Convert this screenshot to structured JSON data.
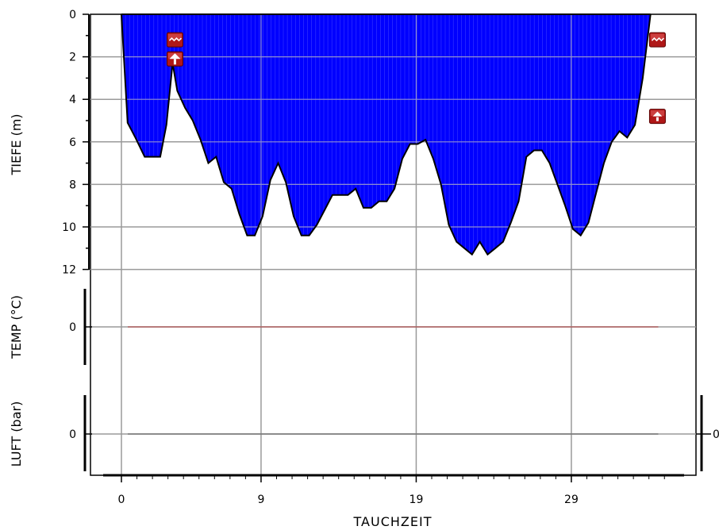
{
  "chart_data": {
    "type": "area",
    "xlabel": "TAUCHZEIT",
    "x_ticks": [
      0,
      9,
      19,
      29
    ],
    "depth_panel": {
      "ylabel": "TIEFE (m)",
      "ylim": [
        0,
        12
      ],
      "y_ticks": [
        0,
        2,
        4,
        6,
        8,
        10,
        12
      ],
      "inverted": true,
      "series": [
        {
          "x": [
            0,
            0.4,
            0.9,
            1.5,
            2.5,
            2.9,
            3.3,
            3.6,
            4.1,
            4.6,
            5.1,
            5.6,
            6.1,
            6.6,
            7.1,
            7.6,
            8.1,
            8.6,
            9.1,
            9.6,
            10.1,
            10.6,
            11.1,
            11.6,
            12.1,
            12.6,
            13.1,
            13.6,
            14.1,
            14.6,
            15.1,
            15.6,
            16.1,
            16.6,
            17.1,
            17.6,
            18.1,
            18.6,
            19.1,
            19.6,
            20.1,
            20.6,
            21.1,
            21.6,
            22.1,
            22.6,
            23.1,
            23.6,
            24.1,
            24.6,
            25.1,
            25.6,
            26.1,
            26.6,
            27.1,
            27.6,
            28.1,
            28.6,
            29.1,
            29.6,
            30.1,
            30.6,
            31.1,
            31.6,
            32.1,
            32.6,
            33.1,
            33.6,
            34.1
          ],
          "y": [
            0,
            5.1,
            5.8,
            6.7,
            6.7,
            5.2,
            2.3,
            3.6,
            4.4,
            5.0,
            5.9,
            7.0,
            6.7,
            7.9,
            8.2,
            9.4,
            10.4,
            10.4,
            9.5,
            7.8,
            7.0,
            7.9,
            9.5,
            10.4,
            10.4,
            9.9,
            9.2,
            8.5,
            8.5,
            8.5,
            8.2,
            9.1,
            9.1,
            8.8,
            8.8,
            8.2,
            6.8,
            6.1,
            6.1,
            5.9,
            6.8,
            8.0,
            9.9,
            10.7,
            11.0,
            11.3,
            10.7,
            11.3,
            11.0,
            10.7,
            9.8,
            8.8,
            6.7,
            6.4,
            6.4,
            7.0,
            8.0,
            9.0,
            10.1,
            10.4,
            9.8,
            8.4,
            7.0,
            6.0,
            5.5,
            5.8,
            5.2,
            3.0,
            0
          ]
        }
      ],
      "fill_color": "#0000ff",
      "markers": [
        {
          "x": 3.5,
          "y": 1.2,
          "icon": "wave-marker-icon"
        },
        {
          "x": 3.5,
          "y": 2.1,
          "icon": "warning-marker-icon"
        },
        {
          "x": 34.6,
          "y": 1.2,
          "icon": "wave-marker-icon"
        },
        {
          "x": 34.6,
          "y": 4.8,
          "icon": "ascent-marker-icon"
        }
      ]
    },
    "temp_panel": {
      "ylabel": "TEMP (°C)",
      "y_ticks": [
        0
      ],
      "line_color": "#b06060",
      "series": [
        {
          "x": [
            0,
            34.6
          ],
          "y": [
            0,
            0
          ]
        }
      ]
    },
    "air_panel": {
      "ylabel": "LUFT (bar)",
      "y_ticks": [
        0
      ],
      "right_ticks": [
        0
      ],
      "line_color": "#777777",
      "series": [
        {
          "x": [
            0,
            34.6
          ],
          "y": [
            0,
            0
          ]
        }
      ]
    },
    "grid": true
  }
}
